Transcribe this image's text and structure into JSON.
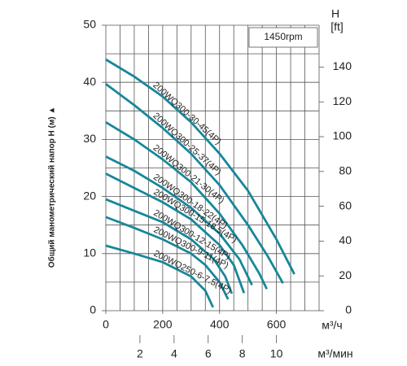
{
  "chart_data": {
    "type": "line",
    "annotation": "1450rpm",
    "ylabel": "Общий манометрический напор H (м) ▲",
    "y2label": "H",
    "y2unit": "[ft]",
    "xlabel": "м³/ч",
    "x2label": "м³/мин",
    "xlim": [
      0,
      750
    ],
    "xticks": [
      0,
      200,
      400,
      600
    ],
    "x2lim": [
      0,
      12.5
    ],
    "x2ticks": [
      2,
      4,
      6,
      8,
      10
    ],
    "ylim": [
      0,
      50
    ],
    "yticks": [
      0,
      10,
      20,
      30,
      40,
      50
    ],
    "y2lim": [
      0,
      164.04
    ],
    "y2ticks": [
      0,
      20,
      40,
      60,
      80,
      100,
      120,
      140
    ],
    "x_gridlines": [
      0,
      50,
      100,
      150,
      200,
      250,
      300,
      350,
      400,
      450,
      500,
      550,
      600,
      650,
      700,
      750
    ],
    "y_gridlines": [
      0,
      5,
      10,
      15,
      20,
      25,
      30,
      35,
      40,
      45,
      50
    ],
    "grid": true,
    "series": [
      {
        "name": "200WQ300-30-45(4P)",
        "color": "#17879a",
        "x": [
          0,
          100,
          200,
          300,
          400,
          500,
          600,
          663
        ],
        "values": [
          44,
          41,
          37.5,
          33,
          27.5,
          21,
          12.5,
          6.4
        ]
      },
      {
        "name": "200WQ300-25-37(4P)",
        "color": "#17879a",
        "x": [
          0,
          100,
          200,
          300,
          400,
          500,
          570,
          623
        ],
        "values": [
          39.7,
          36,
          32,
          27.5,
          22,
          15,
          9.5,
          4.8
        ]
      },
      {
        "name": "200WQ300-21-30(4P)",
        "color": "#17879a",
        "x": [
          0,
          100,
          200,
          300,
          400,
          480,
          540,
          566
        ],
        "values": [
          33,
          30,
          26.5,
          22.5,
          17,
          11.5,
          6.5,
          3.8
        ]
      },
      {
        "name": "200WQ300-18-22(4P)",
        "color": "#17879a",
        "x": [
          0,
          100,
          200,
          300,
          400,
          470,
          514
        ],
        "values": [
          27,
          24.5,
          21.5,
          18,
          13.5,
          9,
          4.5
        ]
      },
      {
        "name": "200WQ300-15-18.5(4P)",
        "color": "#17879a",
        "x": [
          0,
          100,
          200,
          300,
          400,
          450,
          486
        ],
        "values": [
          24,
          21.5,
          19,
          16,
          11.5,
          8,
          3.1
        ]
      },
      {
        "name": "200WQ300-12-15(4P)",
        "color": "#17879a",
        "x": [
          0,
          100,
          200,
          300,
          380,
          420,
          443
        ],
        "values": [
          19.5,
          17.5,
          15.5,
          12.5,
          9,
          6,
          3
        ]
      },
      {
        "name": "200WQ300-9-11(4P)",
        "color": "#17879a",
        "x": [
          0,
          100,
          200,
          300,
          350,
          400,
          430
        ],
        "values": [
          16.4,
          14.5,
          12.5,
          10,
          8,
          5,
          2
        ]
      },
      {
        "name": "200WQ250-6-7.5(4P)",
        "color": "#17879a",
        "x": [
          0,
          100,
          200,
          300,
          350,
          377
        ],
        "values": [
          11.4,
          10,
          8.5,
          6,
          3.5,
          0.6
        ]
      }
    ]
  }
}
